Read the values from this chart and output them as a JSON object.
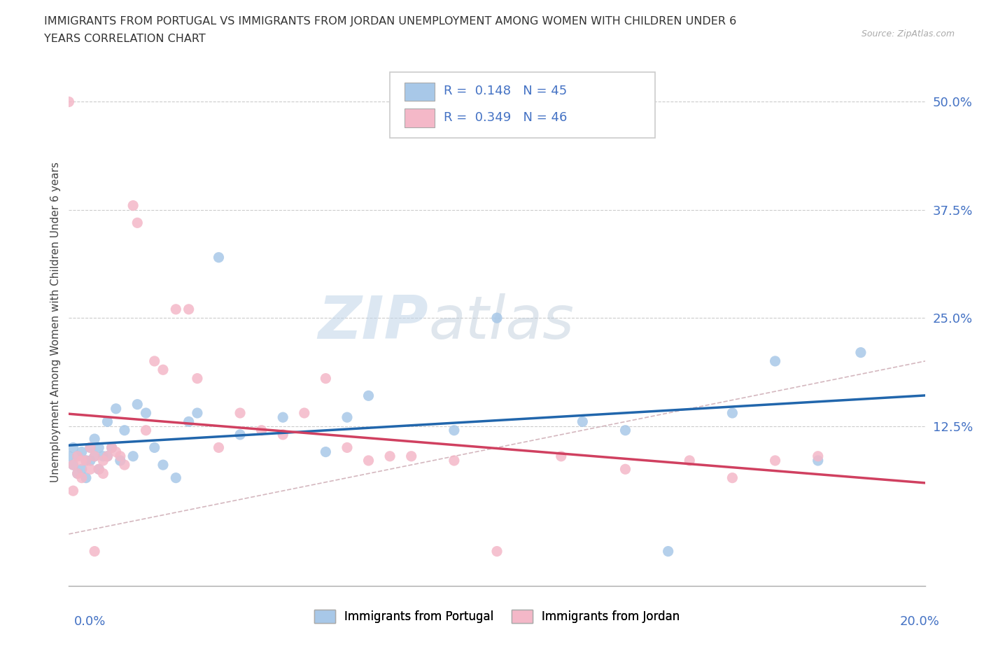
{
  "title_line1": "IMMIGRANTS FROM PORTUGAL VS IMMIGRANTS FROM JORDAN UNEMPLOYMENT AMONG WOMEN WITH CHILDREN UNDER 6",
  "title_line2": "YEARS CORRELATION CHART",
  "source": "Source: ZipAtlas.com",
  "ylabel": "Unemployment Among Women with Children Under 6 years",
  "yticks_labels": [
    "12.5%",
    "25.0%",
    "37.5%",
    "50.0%"
  ],
  "ytick_vals": [
    0.125,
    0.25,
    0.375,
    0.5
  ],
  "xlim": [
    0.0,
    0.2
  ],
  "ylim": [
    -0.06,
    0.55
  ],
  "color_portugal": "#a8c8e8",
  "color_jordan": "#f4b8c8",
  "color_portugal_line": "#2166ac",
  "color_jordan_line": "#d04060",
  "color_diag": "#d0b0b8",
  "watermark_zip": "ZIP",
  "watermark_atlas": "atlas",
  "legend_r1": "R =  0.148   N = 45",
  "legend_r2": "R =  0.349   N = 46",
  "portugal_x": [
    0.0,
    0.001,
    0.001,
    0.002,
    0.002,
    0.003,
    0.003,
    0.004,
    0.004,
    0.005,
    0.005,
    0.006,
    0.006,
    0.007,
    0.007,
    0.008,
    0.009,
    0.009,
    0.01,
    0.011,
    0.012,
    0.013,
    0.015,
    0.016,
    0.018,
    0.02,
    0.022,
    0.025,
    0.028,
    0.03,
    0.035,
    0.04,
    0.05,
    0.06,
    0.065,
    0.07,
    0.09,
    0.1,
    0.12,
    0.13,
    0.14,
    0.155,
    0.165,
    0.175,
    0.185
  ],
  "portugal_y": [
    0.09,
    0.08,
    0.1,
    0.07,
    0.09,
    0.075,
    0.095,
    0.065,
    0.085,
    0.085,
    0.1,
    0.09,
    0.11,
    0.075,
    0.1,
    0.09,
    0.09,
    0.13,
    0.1,
    0.145,
    0.085,
    0.12,
    0.09,
    0.15,
    0.14,
    0.1,
    0.08,
    0.065,
    0.13,
    0.14,
    0.32,
    0.115,
    0.135,
    0.095,
    0.135,
    0.16,
    0.12,
    0.25,
    0.13,
    0.12,
    -0.02,
    0.14,
    0.2,
    0.085,
    0.21
  ],
  "jordan_x": [
    0.0,
    0.001,
    0.001,
    0.002,
    0.002,
    0.003,
    0.003,
    0.004,
    0.005,
    0.005,
    0.006,
    0.006,
    0.007,
    0.008,
    0.008,
    0.009,
    0.01,
    0.011,
    0.012,
    0.013,
    0.015,
    0.016,
    0.018,
    0.02,
    0.022,
    0.025,
    0.028,
    0.03,
    0.035,
    0.04,
    0.045,
    0.05,
    0.055,
    0.06,
    0.065,
    0.07,
    0.075,
    0.08,
    0.09,
    0.1,
    0.115,
    0.13,
    0.145,
    0.155,
    0.165,
    0.175
  ],
  "jordan_y": [
    0.5,
    0.05,
    0.08,
    0.07,
    0.09,
    0.065,
    0.085,
    0.085,
    0.075,
    0.1,
    0.09,
    -0.02,
    0.075,
    0.07,
    0.085,
    0.09,
    0.1,
    0.095,
    0.09,
    0.08,
    0.38,
    0.36,
    0.12,
    0.2,
    0.19,
    0.26,
    0.26,
    0.18,
    0.1,
    0.14,
    0.12,
    0.115,
    0.14,
    0.18,
    0.1,
    0.085,
    0.09,
    0.09,
    0.085,
    -0.02,
    0.09,
    0.075,
    0.085,
    0.065,
    0.085,
    0.09
  ]
}
